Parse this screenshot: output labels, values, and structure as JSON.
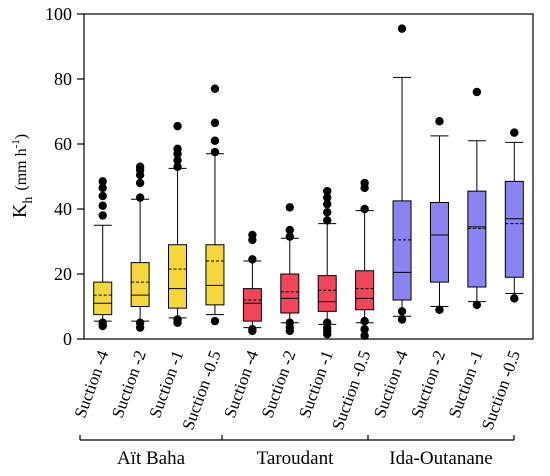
{
  "chart_data": {
    "type": "box",
    "ylabel": "K",
    "ylabel_sub": "h",
    "ylabel_unit": "(mm h",
    "ylabel_exp": "-1",
    "ylabel_close": ")",
    "ylim": [
      0,
      100
    ],
    "yticks": [
      0,
      20,
      40,
      60,
      80,
      100
    ],
    "grid": false,
    "groups": [
      {
        "name": "Aït Baha",
        "color": "#F5D73C",
        "boxes": [
          0,
          1,
          2,
          3
        ]
      },
      {
        "name": "Taroudant",
        "color": "#F0465A",
        "boxes": [
          4,
          5,
          6,
          7
        ]
      },
      {
        "name": "Ida-Outanane",
        "color": "#8A83F2",
        "boxes": [
          8,
          9,
          10,
          11
        ]
      }
    ],
    "boxes": [
      {
        "label": "Suction -4",
        "group": 0,
        "whisker_low": 5.5,
        "q1": 7.5,
        "median": 11,
        "mean": 13.5,
        "q3": 17.5,
        "whisker_high": 35,
        "outliers": [
          4,
          5,
          38,
          41,
          44,
          46.5,
          48.5
        ]
      },
      {
        "label": "Suction -2",
        "group": 0,
        "whisker_low": 5.5,
        "q1": 10,
        "median": 13.5,
        "mean": 17.5,
        "q3": 23.5,
        "whisker_high": 43,
        "outliers": [
          3.5,
          5,
          43.5,
          48,
          50.5,
          52,
          53
        ]
      },
      {
        "label": "Suction -1",
        "group": 0,
        "whisker_low": 6.5,
        "q1": 9.5,
        "median": 15.5,
        "mean": 21.5,
        "q3": 29,
        "whisker_high": 52.5,
        "outliers": [
          5,
          6,
          53,
          55,
          57,
          58.5,
          65.5
        ]
      },
      {
        "label": "Suction -0.5",
        "group": 0,
        "whisker_low": 7.5,
        "q1": 10.5,
        "median": 16.5,
        "mean": 24,
        "q3": 29,
        "whisker_high": 57,
        "outliers": [
          5.5,
          57.5,
          61,
          66.5,
          77
        ]
      },
      {
        "label": "Suction -4",
        "group": 1,
        "whisker_low": 3.5,
        "q1": 5.5,
        "median": 11,
        "mean": 12,
        "q3": 15.5,
        "whisker_high": 24,
        "outliers": [
          2.5,
          3,
          24.5,
          30.5,
          32
        ]
      },
      {
        "label": "Suction -2",
        "group": 1,
        "whisker_low": 5,
        "q1": 8,
        "median": 12.5,
        "mean": 14.5,
        "q3": 20,
        "whisker_high": 31,
        "outliers": [
          2.5,
          3.5,
          5,
          31.5,
          33.5,
          40.5
        ]
      },
      {
        "label": "Suction -1",
        "group": 1,
        "whisker_low": 4.5,
        "q1": 8.5,
        "median": 11.5,
        "mean": 15,
        "q3": 19.5,
        "whisker_high": 35.5,
        "outliers": [
          1.5,
          2.5,
          3.5,
          5,
          36.5,
          39,
          41.5,
          43.5,
          45.5
        ]
      },
      {
        "label": "Suction -0.5",
        "group": 1,
        "whisker_low": 5,
        "q1": 9,
        "median": 12.5,
        "mean": 15.5,
        "q3": 21,
        "whisker_high": 39.5,
        "outliers": [
          1,
          3,
          5.5,
          40,
          46.5,
          48
        ]
      },
      {
        "label": "Suction -4",
        "group": 2,
        "whisker_low": 7,
        "q1": 12,
        "median": 20.5,
        "mean": 30.5,
        "q3": 42.5,
        "whisker_high": 80.5,
        "outliers": [
          6,
          8.5,
          95.5
        ]
      },
      {
        "label": "Suction -2",
        "group": 2,
        "whisker_low": 10,
        "q1": 17.5,
        "median": 32,
        "mean": 32,
        "q3": 42,
        "whisker_high": 62.5,
        "outliers": [
          9,
          67
        ]
      },
      {
        "label": "Suction -1",
        "group": 2,
        "whisker_low": 11.5,
        "q1": 16,
        "median": 34.5,
        "mean": 34,
        "q3": 45.5,
        "whisker_high": 61,
        "outliers": [
          10.5,
          76
        ]
      },
      {
        "label": "Suction -0.5",
        "group": 2,
        "whisker_low": 14,
        "q1": 19,
        "median": 37,
        "mean": 35.5,
        "q3": 48.5,
        "whisker_high": 60.5,
        "outliers": [
          12.5,
          63.5
        ]
      }
    ]
  }
}
